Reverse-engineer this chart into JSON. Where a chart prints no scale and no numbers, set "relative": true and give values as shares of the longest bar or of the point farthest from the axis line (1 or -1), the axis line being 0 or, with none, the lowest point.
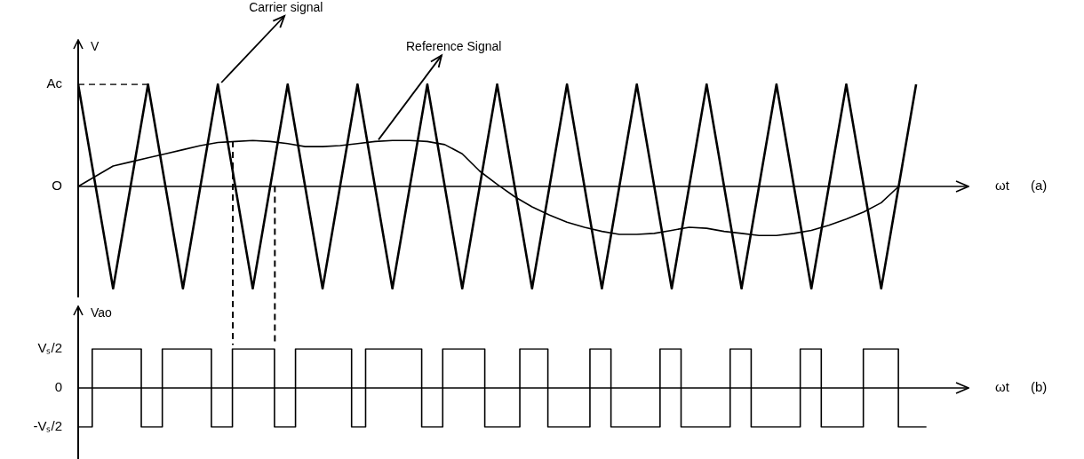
{
  "chart_data": [
    {
      "type": "line",
      "xlabel": "ωt",
      "ylabel": "V",
      "relative": true,
      "tick_labels": false,
      "legend": false,
      "marker": "none",
      "annotations": [
        "Ac",
        "O",
        "(a)"
      ],
      "categories": [
        null,
        null,
        null,
        null,
        null,
        null,
        null,
        null,
        null,
        null,
        null,
        null,
        null,
        null,
        null,
        null,
        null,
        null,
        null,
        null,
        null,
        null,
        null,
        null,
        null,
        null,
        null,
        null,
        null,
        null,
        null,
        null,
        null,
        null,
        null,
        null,
        null,
        null,
        null,
        null,
        null,
        null,
        null,
        null,
        null,
        null,
        null,
        null,
        null,
        null,
        null,
        null
      ],
      "series": [
        {
          "name": "Carrier signal",
          "color": "#000000",
          "values": [
            1,
            0,
            -1,
            0,
            1,
            0,
            -1,
            0,
            1,
            0,
            -1,
            0,
            1,
            0,
            -1,
            0,
            1,
            0,
            -1,
            0,
            1,
            0,
            -1,
            0,
            1,
            0,
            -1,
            0,
            1,
            0,
            -1,
            0,
            1,
            0,
            -1,
            0,
            1,
            0,
            -1,
            0,
            1,
            0,
            -1,
            0,
            1,
            0,
            -1,
            0,
            1,
            null,
            null,
            null
          ]
        },
        {
          "name": "Reference Signal",
          "color": "#000000",
          "values": [
            0,
            0.1,
            0.2,
            0.24,
            0.28,
            0.32,
            0.36,
            0.4,
            0.43,
            0.44,
            0.45,
            0.44,
            0.42,
            0.39,
            0.39,
            0.4,
            0.42,
            0.44,
            0.45,
            0.45,
            0.44,
            0.41,
            0.32,
            0.15,
            0.02,
            -0.1,
            -0.2,
            -0.28,
            -0.35,
            -0.4,
            -0.44,
            -0.47,
            -0.47,
            -0.46,
            -0.43,
            -0.4,
            -0.41,
            -0.44,
            -0.46,
            -0.48,
            -0.48,
            -0.46,
            -0.43,
            -0.38,
            -0.32,
            -0.25,
            -0.16,
            0,
            null,
            null,
            null,
            null
          ]
        },
        {
          "color": "#000000",
          "line_style": "dashed",
          "values": [
            1,
            1,
            1,
            1,
            1,
            null,
            null,
            null,
            null,
            null,
            null,
            null,
            null,
            null,
            null,
            null,
            null,
            null,
            null,
            null,
            null,
            null,
            null,
            null,
            null,
            null,
            null,
            null,
            null,
            null,
            null,
            null,
            null,
            null,
            null,
            null,
            null,
            null,
            null,
            null,
            null,
            null,
            null,
            null,
            null,
            null,
            null,
            null,
            null,
            null,
            null,
            null
          ]
        }
      ]
    },
    {
      "type": "step",
      "xlabel": "ωt",
      "ylabel": "Vao",
      "relative": true,
      "tick_labels": false,
      "legend": false,
      "marker": "none",
      "annotations": [
        "Vₛ/2",
        "0",
        "-Vₛ/2",
        "(b)"
      ],
      "categories": [
        null,
        null,
        null,
        null,
        null,
        null,
        null,
        null,
        null,
        null,
        null,
        null,
        null,
        null,
        null,
        null,
        null,
        null,
        null,
        null,
        null,
        null,
        null,
        null,
        null,
        null,
        null,
        null,
        null,
        null,
        null,
        null,
        null,
        null,
        null,
        null,
        null,
        null,
        null,
        null,
        null,
        null,
        null,
        null,
        null,
        null,
        null,
        null,
        null,
        null,
        null,
        null,
        null,
        null,
        null,
        null,
        null,
        null,
        null,
        null,
        null,
        null,
        null,
        null,
        null,
        null,
        null,
        null,
        null,
        null,
        null,
        null,
        null,
        null,
        null,
        null,
        null,
        null,
        null,
        null,
        null,
        null,
        null,
        null,
        null,
        null,
        null,
        null,
        null,
        null,
        null,
        null,
        null,
        null,
        null,
        null,
        null,
        null,
        null,
        null,
        null,
        null,
        null,
        null,
        null,
        null,
        null,
        null,
        null,
        null,
        null,
        null,
        null,
        null,
        null,
        null,
        null,
        null,
        null,
        null,
        null,
        null,
        null,
        null,
        null,
        null,
        null,
        null
      ],
      "series": [
        {
          "color": "#000000",
          "values": [
            -1,
            -1,
            1,
            1,
            1,
            1,
            1,
            1,
            1,
            -1,
            -1,
            -1,
            1,
            1,
            1,
            1,
            1,
            1,
            1,
            -1,
            -1,
            -1,
            1,
            1,
            1,
            1,
            1,
            1,
            -1,
            -1,
            -1,
            1,
            1,
            1,
            1,
            1,
            1,
            1,
            1,
            -1,
            -1,
            1,
            1,
            1,
            1,
            1,
            1,
            1,
            1,
            -1,
            -1,
            -1,
            1,
            1,
            1,
            1,
            1,
            1,
            -1,
            -1,
            -1,
            -1,
            -1,
            1,
            1,
            1,
            1,
            -1,
            -1,
            -1,
            -1,
            -1,
            -1,
            1,
            1,
            1,
            -1,
            -1,
            -1,
            -1,
            -1,
            -1,
            -1,
            1,
            1,
            1,
            -1,
            -1,
            -1,
            -1,
            -1,
            -1,
            -1,
            1,
            1,
            1,
            -1,
            -1,
            -1,
            -1,
            -1,
            -1,
            -1,
            1,
            1,
            1,
            -1,
            -1,
            -1,
            -1,
            -1,
            -1,
            1,
            1,
            1,
            1,
            1,
            -1,
            -1,
            -1,
            -1,
            -1,
            null,
            null,
            null,
            null,
            null,
            null
          ]
        }
      ]
    }
  ]
}
